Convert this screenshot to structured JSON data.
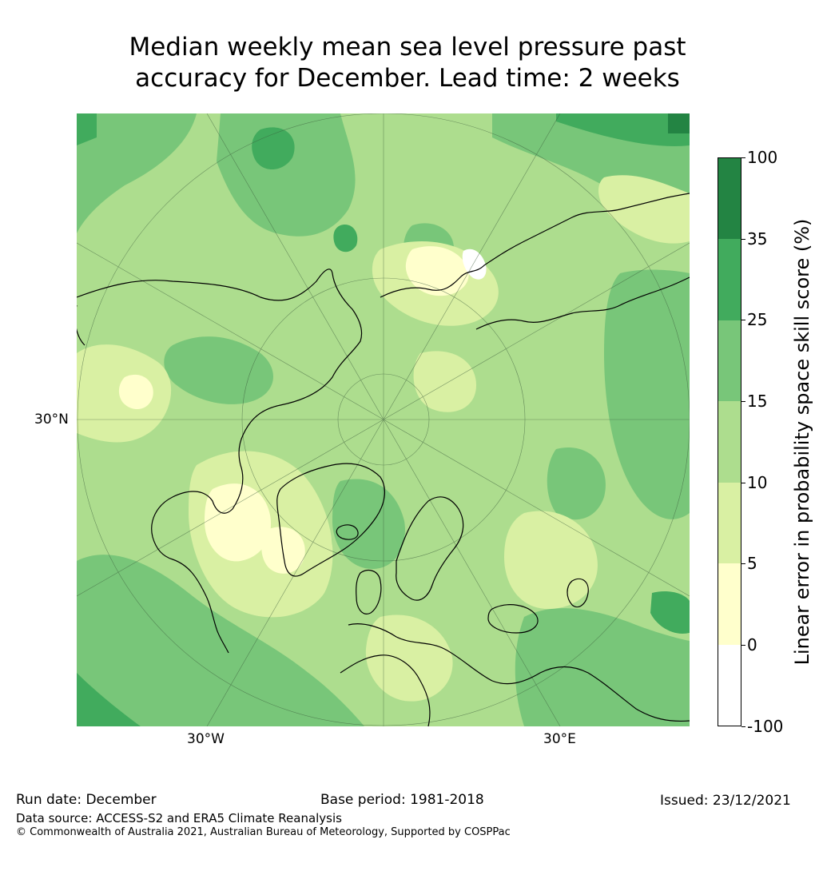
{
  "title_line1": "Median weekly mean sea level pressure past",
  "title_line2": "accuracy for December. Lead time: 2 weeks",
  "map": {
    "projection": "north-polar-stereographic",
    "axis_labels": {
      "left": "30°N",
      "bottom_left": "30°W",
      "bottom_right": "30°E"
    }
  },
  "colorbar": {
    "title": "Linear error in probability space skill score (%)",
    "ticks": [
      "100",
      "35",
      "25",
      "15",
      "10",
      "5",
      "0",
      "-100"
    ],
    "bins": [
      {
        "range": "35 to 100",
        "color": "#238443"
      },
      {
        "range": "25 to 35",
        "color": "#41ab5d"
      },
      {
        "range": "15 to 25",
        "color": "#78c679"
      },
      {
        "range": "10 to 15",
        "color": "#addd8e"
      },
      {
        "range": "5 to 10",
        "color": "#d9f0a3"
      },
      {
        "range": "0 to 5",
        "color": "#ffffcc"
      },
      {
        "range": "-100 to 0",
        "color": "#ffffff"
      }
    ]
  },
  "footer": {
    "run_date": "Run date: December",
    "base_period": "Base period: 1981-2018",
    "issued": "Issued: 23/12/2021",
    "data_source": "Data source: ACCESS-S2 and ERA5 Climate Reanalysis",
    "copyright": "© Commonwealth of Australia 2021, Australian Bureau of Meteorology, Supported by COSPPac"
  }
}
